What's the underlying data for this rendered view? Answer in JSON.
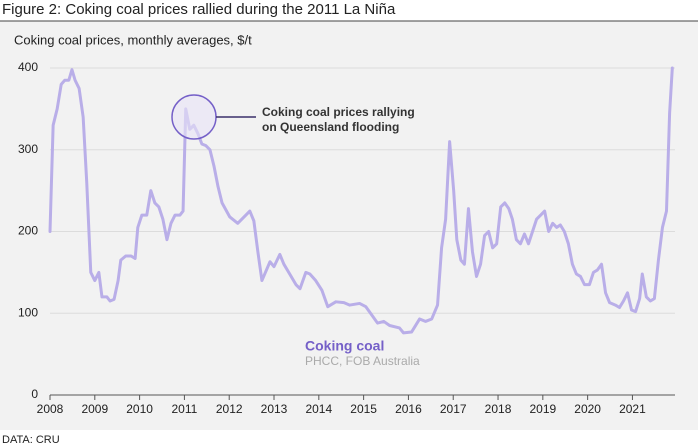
{
  "chart_data": {
    "type": "line",
    "title": "Figure 2: Coking coal prices rallied during the 2011 La Niña",
    "subtitle": "Coking coal prices, monthly averages, $/t",
    "source": "DATA: CRU",
    "annotation": [
      "Coking coal prices rallying",
      "on Queensland flooding"
    ],
    "series_note": "PHCC, FOB Australia",
    "label_color": "#7560c8",
    "xlim": [
      2008,
      2021.95
    ],
    "xticks": [
      2008,
      2009,
      2010,
      2011,
      2012,
      2013,
      2014,
      2015,
      2016,
      2017,
      2018,
      2019,
      2020,
      2021
    ],
    "ylim": [
      0,
      400
    ],
    "yticks": [
      0,
      100,
      200,
      300,
      400
    ],
    "grid": true,
    "x": [
      2008,
      2008.07,
      2008.16,
      2008.25,
      2008.33,
      2008.42,
      2008.49,
      2008.56,
      2008.65,
      2008.74,
      2008.82,
      2008.91,
      2009,
      2009.09,
      2009.16,
      2009.27,
      2009.34,
      2009.43,
      2009.52,
      2009.58,
      2009.69,
      2009.81,
      2009.9,
      2009.96,
      2010.05,
      2010.16,
      2010.25,
      2010.34,
      2010.43,
      2010.52,
      2010.61,
      2010.7,
      2010.79,
      2010.9,
      2010.97,
      2011.03,
      2011.12,
      2011.21,
      2011.3,
      2011.39,
      2011.48,
      2011.57,
      2011.66,
      2011.75,
      2011.84,
      2012.01,
      2012.19,
      2012.37,
      2012.46,
      2012.55,
      2012.64,
      2012.73,
      2012.91,
      2013,
      2013.13,
      2013.22,
      2013.35,
      2013.49,
      2013.58,
      2013.71,
      2013.8,
      2013.93,
      2014.07,
      2014.2,
      2014.38,
      2014.56,
      2014.69,
      2014.91,
      2015.05,
      2015.18,
      2015.31,
      2015.45,
      2015.58,
      2015.8,
      2015.89,
      2016.07,
      2016.25,
      2016.38,
      2016.52,
      2016.65,
      2016.74,
      2016.83,
      2016.92,
      2017.01,
      2017.08,
      2017.17,
      2017.25,
      2017.34,
      2017.43,
      2017.52,
      2017.61,
      2017.7,
      2017.79,
      2017.88,
      2017.97,
      2018.06,
      2018.15,
      2018.24,
      2018.32,
      2018.41,
      2018.5,
      2018.59,
      2018.68,
      2018.77,
      2018.86,
      2018.95,
      2019.04,
      2019.13,
      2019.22,
      2019.31,
      2019.39,
      2019.48,
      2019.57,
      2019.66,
      2019.75,
      2019.84,
      2019.93,
      2020.04,
      2020.13,
      2020.22,
      2020.31,
      2020.4,
      2020.49,
      2020.62,
      2020.71,
      2020.8,
      2020.89,
      2020.98,
      2021.07,
      2021.16,
      2021.22,
      2021.31,
      2021.4,
      2021.49,
      2021.58,
      2021.67,
      2021.76,
      2021.83,
      2021.89
    ],
    "series": [
      {
        "name": "Coking coal",
        "color": "#b9aee8",
        "values": [
          200,
          330,
          350,
          380,
          385,
          385,
          398,
          385,
          375,
          340,
          260,
          150,
          140,
          150,
          120,
          120,
          115,
          117,
          140,
          165,
          170,
          170,
          167,
          205,
          220,
          220,
          250,
          235,
          230,
          215,
          190,
          210,
          220,
          220,
          225,
          350,
          325,
          330,
          320,
          307,
          305,
          300,
          280,
          255,
          235,
          218,
          210,
          220,
          225,
          213,
          175,
          140,
          163,
          157,
          172,
          160,
          148,
          135,
          130,
          150,
          148,
          140,
          128,
          108,
          114,
          113,
          110,
          112,
          108,
          98,
          88,
          90,
          85,
          82,
          76,
          77,
          93,
          90,
          93,
          110,
          180,
          215,
          310,
          250,
          190,
          165,
          160,
          228,
          175,
          145,
          160,
          195,
          200,
          180,
          185,
          230,
          235,
          228,
          215,
          190,
          185,
          197,
          185,
          200,
          215,
          220,
          225,
          200,
          210,
          205,
          208,
          200,
          185,
          160,
          148,
          145,
          135,
          135,
          150,
          153,
          160,
          125,
          113,
          110,
          107,
          115,
          125,
          104,
          102,
          118,
          148,
          120,
          115,
          118,
          165,
          205,
          225,
          345,
          400
        ]
      }
    ]
  }
}
